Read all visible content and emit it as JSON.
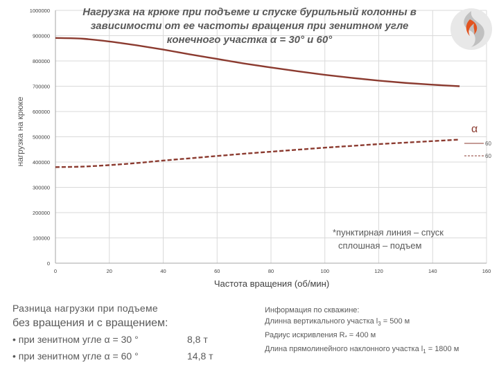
{
  "title": {
    "line1": "Нагрузка на крюке при подъеме и спуске бурильный колонны в",
    "line2": "зависимости от ее частоты вращения при зенитном угле",
    "line3": "конечного участка α = 30° и 60°"
  },
  "legend": {
    "symbol": "α",
    "solid_label": "60",
    "dashed_label": "60"
  },
  "annotation": {
    "line1": "*пунктирная линия – спуск",
    "line2": "сплошная – подъем"
  },
  "summary": {
    "line1": "Разница нагрузки при подъеме",
    "line2": "без вращения и с вращением:",
    "row1_label": "• при зенитном угле α = 30 °",
    "row1_value": "8,8  т",
    "row2_label": "• при зенитном угле α = 60 °",
    "row2_value": "14,8 т"
  },
  "well_info": {
    "header": "Информация по скважине:",
    "vertical_prefix": "Длинна вертикального участка l",
    "vertical_sub": "3",
    "vertical_suffix": " = 500 м",
    "radius_prefix": "Радиус искривления R",
    "radius_sub": "*",
    "radius_suffix": " = 400 м",
    "straight_prefix": "Длина прямолинейного наклонного участка l",
    "straight_sub": "1",
    "straight_suffix": " = 1800 м"
  },
  "colors": {
    "series": "#8B3A2F",
    "grid": "#d9d9d9",
    "axis": "#a6a6a6"
  },
  "chart_data": {
    "type": "line",
    "xlabel": "Частота вращения (об/мин)",
    "ylabel": "нагрузка на крюке",
    "xlim": [
      0,
      160
    ],
    "ylim": [
      0,
      1000000
    ],
    "xticks": [
      0,
      20,
      40,
      60,
      80,
      100,
      120,
      140,
      160
    ],
    "yticks": [
      0,
      100000,
      200000,
      300000,
      400000,
      500000,
      600000,
      700000,
      800000,
      900000,
      1000000
    ],
    "grid": true,
    "series": [
      {
        "name": "60",
        "style": "solid",
        "x": [
          0,
          10,
          20,
          30,
          40,
          50,
          60,
          70,
          80,
          90,
          100,
          110,
          120,
          130,
          140,
          150
        ],
        "y": [
          891000,
          888000,
          877000,
          862000,
          845000,
          826000,
          808000,
          790000,
          774000,
          759000,
          745000,
          733000,
          722000,
          713000,
          706000,
          700000
        ]
      },
      {
        "name": "60",
        "style": "dashed",
        "x": [
          0,
          10,
          20,
          30,
          40,
          50,
          60,
          70,
          80,
          90,
          100,
          110,
          120,
          130,
          140,
          150
        ],
        "y": [
          380000,
          382000,
          388000,
          396000,
          406000,
          415000,
          424000,
          433000,
          441000,
          449000,
          457000,
          464000,
          471000,
          477000,
          483000,
          489000
        ]
      }
    ]
  }
}
